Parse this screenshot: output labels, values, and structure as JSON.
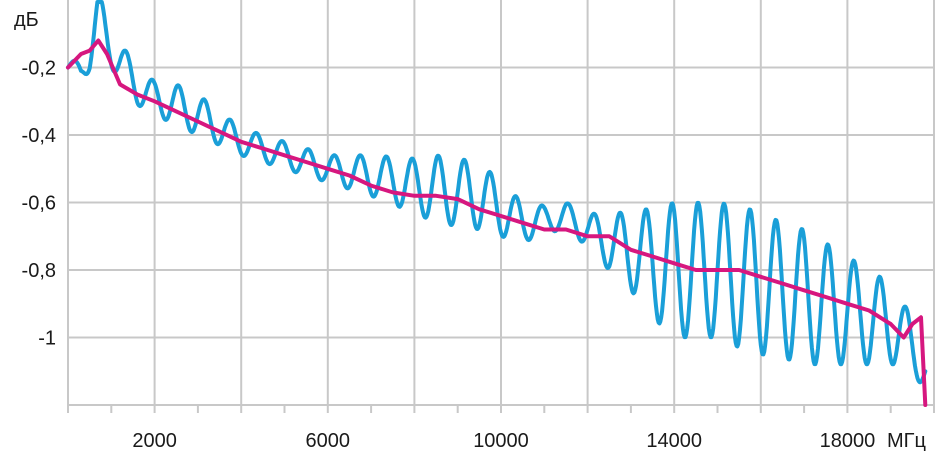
{
  "chart_data": {
    "type": "line",
    "title": "",
    "ylabel": "дБ",
    "xlabel_unit": "МГц",
    "xlim": [
      0,
      20000
    ],
    "ylim": [
      -1.2,
      0
    ],
    "x_ticks": [
      2000,
      6000,
      10000,
      14000,
      18000
    ],
    "x_tick_labels": [
      "2000",
      "6000",
      "10000",
      "14000",
      "18000"
    ],
    "y_ticks": [
      -0.2,
      -0.4,
      -0.6,
      -0.8,
      -1
    ],
    "y_tick_labels": [
      "-0,2",
      "-0,4",
      "-0,6",
      "-0,8",
      "-1"
    ],
    "grid": true,
    "series": [
      {
        "color": "#1a9fd8",
        "x": [
          0,
          300,
          500,
          700,
          1000,
          1200,
          1600,
          2000,
          2500,
          3000,
          3500,
          4000,
          5000,
          6000,
          7000,
          8000,
          8500,
          9000,
          9500,
          10000,
          10500,
          11000,
          11500,
          12000,
          12500,
          13000,
          13500,
          14000,
          14500,
          15000,
          15500,
          16000,
          16500,
          17000,
          17500,
          18000,
          18500,
          19000,
          19400,
          19800,
          20000
        ],
        "y": [
          -0.2,
          -0.21,
          -0.15,
          -0.05,
          -0.14,
          -0.18,
          -0.26,
          -0.29,
          -0.31,
          -0.34,
          -0.38,
          -0.42,
          -0.46,
          -0.5,
          -0.52,
          -0.55,
          -0.56,
          -0.57,
          -0.58,
          -0.62,
          -0.66,
          -0.65,
          -0.64,
          -0.68,
          -0.72,
          -0.74,
          -0.78,
          -0.8,
          -0.8,
          -0.8,
          -0.82,
          -0.84,
          -0.86,
          -0.88,
          -0.9,
          -0.92,
          -0.94,
          -0.96,
          -1.0,
          -1.1,
          -1.18
        ],
        "oscillation": [
          0.02,
          0.03,
          0.06,
          0.08,
          0.06,
          0.06,
          0.05,
          0.05,
          0.06,
          0.06,
          0.05,
          0.04,
          0.04,
          0.04,
          0.06,
          0.08,
          0.1,
          0.1,
          0.1,
          0.08,
          0.06,
          0.04,
          0.04,
          0.05,
          0.08,
          0.12,
          0.16,
          0.2,
          0.2,
          0.2,
          0.21,
          0.21,
          0.2,
          0.2,
          0.18,
          0.16,
          0.14,
          0.12,
          0.08,
          0.06,
          0.04
        ],
        "period_mhz": 600
      },
      {
        "color": "#d6177f",
        "x": [
          0,
          300,
          500,
          700,
          900,
          1200,
          1600,
          2000,
          2500,
          3000,
          3500,
          4000,
          4500,
          5000,
          5500,
          6000,
          6500,
          7000,
          7500,
          8000,
          8500,
          9000,
          9500,
          10000,
          10500,
          11000,
          11500,
          12000,
          12500,
          13000,
          13500,
          14000,
          14500,
          15000,
          15500,
          16000,
          16500,
          17000,
          17500,
          18000,
          18500,
          19000,
          19300,
          19500,
          19700,
          19800
        ],
        "y": [
          -0.2,
          -0.16,
          -0.15,
          -0.12,
          -0.16,
          -0.25,
          -0.28,
          -0.3,
          -0.33,
          -0.36,
          -0.39,
          -0.42,
          -0.44,
          -0.46,
          -0.48,
          -0.5,
          -0.52,
          -0.55,
          -0.57,
          -0.58,
          -0.58,
          -0.59,
          -0.62,
          -0.64,
          -0.66,
          -0.68,
          -0.68,
          -0.7,
          -0.7,
          -0.74,
          -0.76,
          -0.78,
          -0.8,
          -0.8,
          -0.8,
          -0.82,
          -0.84,
          -0.86,
          -0.88,
          -0.9,
          -0.92,
          -0.96,
          -1.0,
          -0.96,
          -0.94,
          -1.2
        ]
      }
    ]
  }
}
